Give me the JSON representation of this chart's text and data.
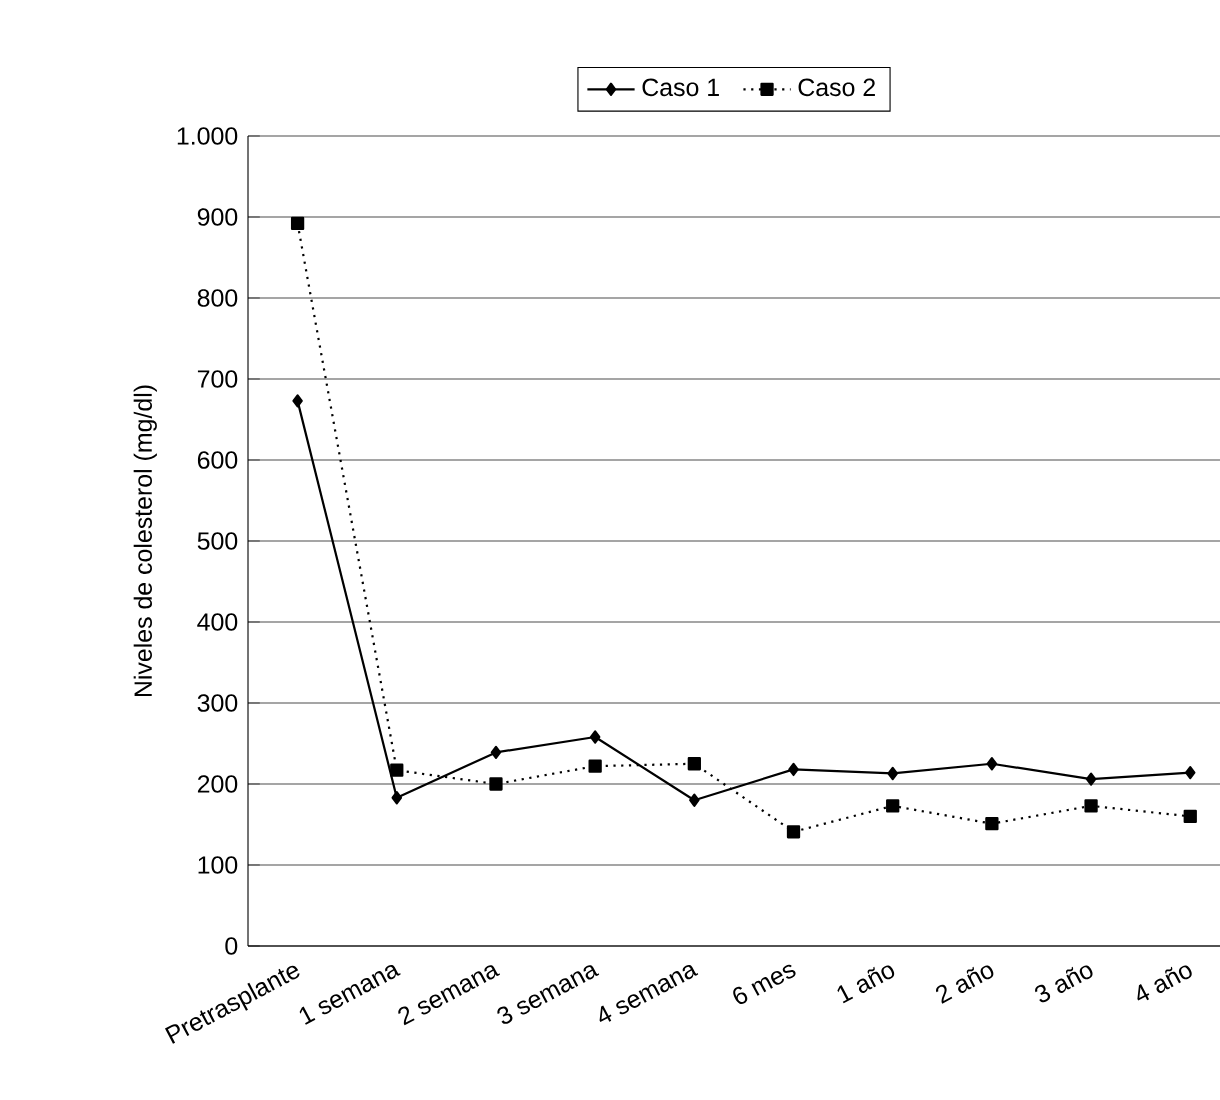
{
  "chart_data": {
    "type": "line",
    "ylabel": "Niveles de colesterol (mg/dl)",
    "categories": [
      "Pretrasplante",
      "1 semana",
      "2 semana",
      "3 semana",
      "4 semana",
      "6 mes",
      "1 año",
      "2 año",
      "3 año",
      "4 año"
    ],
    "series": [
      {
        "name": "Caso 1",
        "color": "#000000",
        "marker": "diamond",
        "line_style": "solid",
        "values": [
          673,
          183,
          239,
          258,
          180,
          218,
          213,
          225,
          206,
          214
        ]
      },
      {
        "name": "Caso 2",
        "color": "#000000",
        "marker": "square",
        "line_style": "dotted",
        "values": [
          892,
          217,
          200,
          222,
          225,
          141,
          173,
          151,
          173,
          160
        ]
      }
    ],
    "ylim": [
      0,
      1000
    ],
    "yticks": [
      0,
      100,
      200,
      300,
      400,
      500,
      600,
      700,
      800,
      900,
      {
        "value": 1000,
        "label": "1.000"
      }
    ],
    "grid": "y",
    "legend": "top"
  }
}
